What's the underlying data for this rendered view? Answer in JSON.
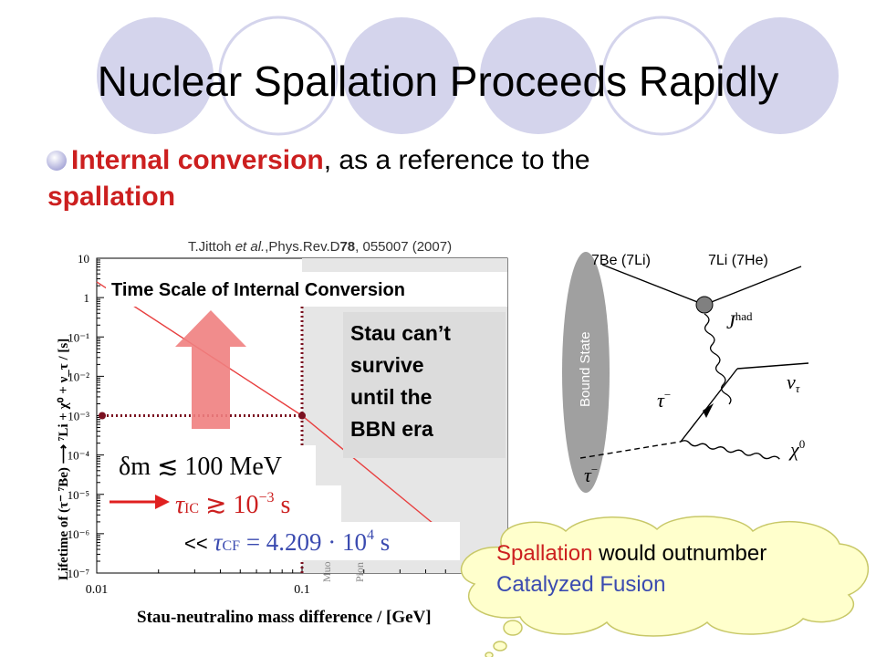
{
  "slide": {
    "title": "Nuclear Spallation Proceeds Rapidly",
    "bullet": {
      "emph1": "Internal conversion",
      "mid": ", as a reference to the",
      "emph2": "spallation"
    },
    "citation": {
      "prefix": "T.Jittoh ",
      "etal": "et al.",
      "journal": ",Phys.Rev.D",
      "volume": "78",
      "rest": ", 055007 (2007)"
    },
    "plot_box_title": "Time Scale of Internal Conversion",
    "stau_box": [
      "Stau can’t",
      "survive",
      "until  the",
      "BBN era"
    ],
    "formulas": {
      "delta_m": "δm ≲ 100 MeV",
      "tau_ic": "τ",
      "tau_ic_sub": "IC",
      "tau_ic_rel": " ≳ 10",
      "tau_ic_exp": "−3",
      "tau_ic_unit": " s",
      "ll": "<< ",
      "tau_cf": "τ",
      "tau_cf_sub": "CF",
      "tau_cf_rel": " = 4.209 · 10",
      "tau_cf_exp": "4",
      "tau_cf_unit": " s"
    },
    "shaded_labels": [
      "Muo",
      "Pion"
    ],
    "diagram": {
      "be_label": "7Be (7Li)",
      "li_label": "7Li (7He)",
      "bound_state": "Bound State",
      "j_had": "J",
      "j_had_sup": "had",
      "nu_tau": "ν",
      "nu_tau_sub": "τ",
      "tau_minus": "τ",
      "tau_minus_sup": "−",
      "chi0": "χ",
      "chi0_sup": "0",
      "stau": "τ",
      "stau_sup": "−"
    },
    "balloon": {
      "line1_red": "Spallation",
      "line1_rest": " would outnumber",
      "line2": "Catalyzed Fusion"
    },
    "colors": {
      "accent_red": "#cc1f1f",
      "accent_blue": "#3b4bb0",
      "circle_fill": "#d4d4ec",
      "balloon_fill": "#ffffcc"
    }
  },
  "chart_data": {
    "type": "line",
    "x_scale": "log",
    "y_scale": "log",
    "xlabel": "Stau-neutralino mass difference / [GeV]",
    "ylabel": "Lifetime of (τ⁻ ⁷Be) ⟶ ⁷Li + χ⁰ + ν_τ / [s]",
    "xlim": [
      0.01,
      1
    ],
    "ylim": [
      1e-07,
      10
    ],
    "x_ticks": [
      "0.01",
      "0.1"
    ],
    "y_ticks": [
      "10",
      "1",
      "10⁻¹",
      "10⁻²",
      "10⁻³",
      "10⁻⁴",
      "10⁻⁵",
      "10⁻⁶",
      "10⁻⁷"
    ],
    "series": [
      {
        "x": [
          0.01,
          0.1,
          0.5
        ],
        "y": [
          2.5,
          0.001,
          1e-06
        ]
      }
    ],
    "reference_point": {
      "x": 0.1,
      "y": 0.001
    },
    "shaded_region": {
      "x_from": 0.1,
      "x_to": 1
    }
  }
}
